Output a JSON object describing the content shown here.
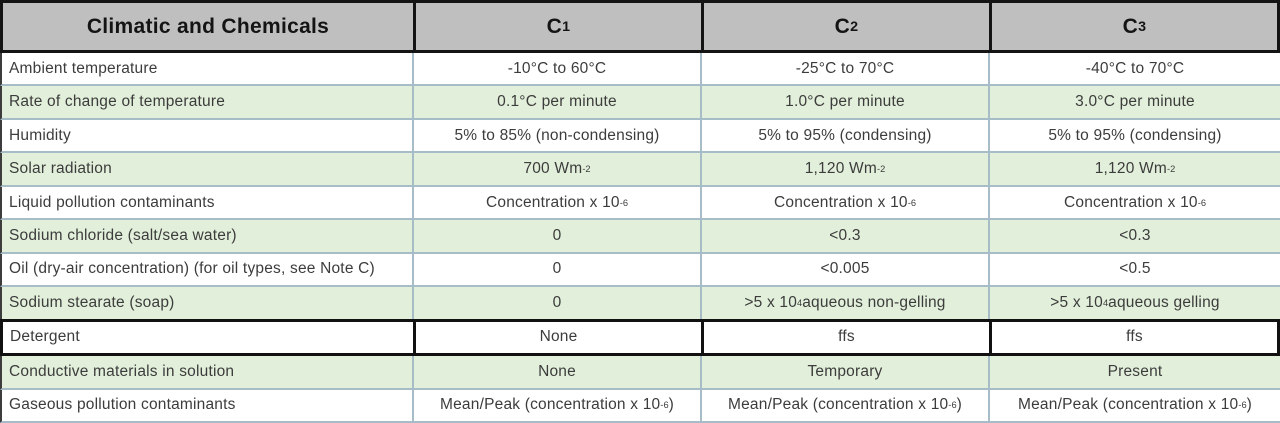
{
  "table": {
    "header": {
      "label": "Climatic and Chemicals",
      "columns": [
        "C_{1}",
        "C_{2}",
        "C_{3}"
      ]
    },
    "rows": [
      {
        "label": "Ambient temperature",
        "values": [
          "-10°C to 60°C",
          "-25°C to 70°C",
          "-40°C to 70°C"
        ],
        "shade": false,
        "heavy": false
      },
      {
        "label": "Rate of change of temperature",
        "values": [
          "0.1°C per minute",
          "1.0°C per minute",
          "3.0°C per minute"
        ],
        "shade": true,
        "heavy": false
      },
      {
        "label": "Humidity",
        "values": [
          "5% to 85% (non-condensing)",
          "5% to 95% (condensing)",
          "5% to 95% (condensing)"
        ],
        "shade": false,
        "heavy": false
      },
      {
        "label": "Solar radiation",
        "values": [
          "700 Wm^{-2}",
          "1,120 Wm^{-2}",
          "1,120 Wm^{-2}"
        ],
        "shade": true,
        "heavy": false
      },
      {
        "label": "Liquid pollution contaminants",
        "values": [
          "Concentration x 10^{-6}",
          "Concentration x 10^{-6}",
          "Concentration x 10^{-6}"
        ],
        "shade": false,
        "heavy": false
      },
      {
        "label": "Sodium chloride (salt/sea water)",
        "values": [
          "0",
          "<0.3",
          "<0.3"
        ],
        "shade": true,
        "heavy": false
      },
      {
        "label": "Oil (dry-air concentration)  (for oil types, see Note C)",
        "values": [
          "0",
          "<0.005",
          "<0.5"
        ],
        "shade": false,
        "heavy": false
      },
      {
        "label": "Sodium stearate (soap)",
        "values": [
          "0",
          ">5 x 10^{4} aqueous non-gelling",
          ">5 x 10^{4} aqueous gelling"
        ],
        "shade": true,
        "heavy": false
      },
      {
        "label": "Detergent",
        "values": [
          "None",
          "ffs",
          "ffs"
        ],
        "shade": false,
        "heavy": true
      },
      {
        "label": "Conductive materials in solution",
        "values": [
          "None",
          "Temporary",
          "Present"
        ],
        "shade": true,
        "heavy": false
      },
      {
        "label": "Gaseous pollution contaminants",
        "values": [
          "Mean/Peak (concentration x 10^{-6})",
          "Mean/Peak (concentration x 10^{-6})",
          "Mean/Peak (concentration x 10^{-6})"
        ],
        "shade": false,
        "heavy": false
      }
    ],
    "colors": {
      "header_bg": "#bfbfbf",
      "shade_bg": "#e2efda",
      "border_light": "#a6bcc6",
      "border_dark": "#141414"
    }
  }
}
